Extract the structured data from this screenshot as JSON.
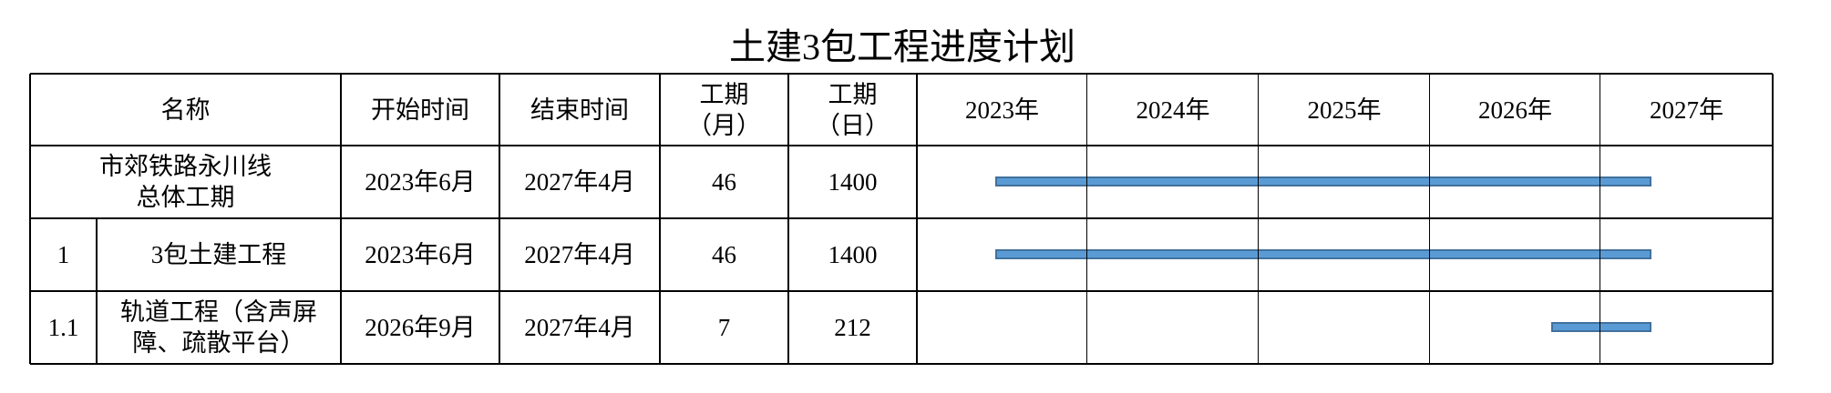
{
  "title": "土建3包工程进度计划",
  "headers": {
    "name": "名称",
    "start": "开始时间",
    "end": "结束时间",
    "months_l1": "工期",
    "months_l2": "（月）",
    "days_l1": "工期",
    "days_l2": "（日）",
    "years": [
      "2023年",
      "2024年",
      "2025年",
      "2026年",
      "2027年"
    ]
  },
  "rows": [
    {
      "no": "",
      "name_l1": "市郊铁路永川线",
      "name_l2": "总体工期",
      "start": "2023年6月",
      "end": "2027年4月",
      "months": "46",
      "days": "1400",
      "gantt": {
        "start_year": 2023,
        "start_month": 6,
        "end_year": 2027,
        "end_month": 4
      }
    },
    {
      "no": "1",
      "name_l1": "3包土建工程",
      "name_l2": "",
      "start": "2023年6月",
      "end": "2027年4月",
      "months": "46",
      "days": "1400",
      "gantt": {
        "start_year": 2023,
        "start_month": 6,
        "end_year": 2027,
        "end_month": 4
      }
    },
    {
      "no": "1.1",
      "name_l1": "轨道工程（含声屏",
      "name_l2": "障、疏散平台）",
      "start": "2026年9月",
      "end": "2027年4月",
      "months": "7",
      "days": "212",
      "gantt": {
        "start_year": 2026,
        "start_month": 9,
        "end_year": 2027,
        "end_month": 4
      }
    }
  ],
  "colors": {
    "bar_fill": "#5b9bd5",
    "bar_border": "#41719c"
  }
}
